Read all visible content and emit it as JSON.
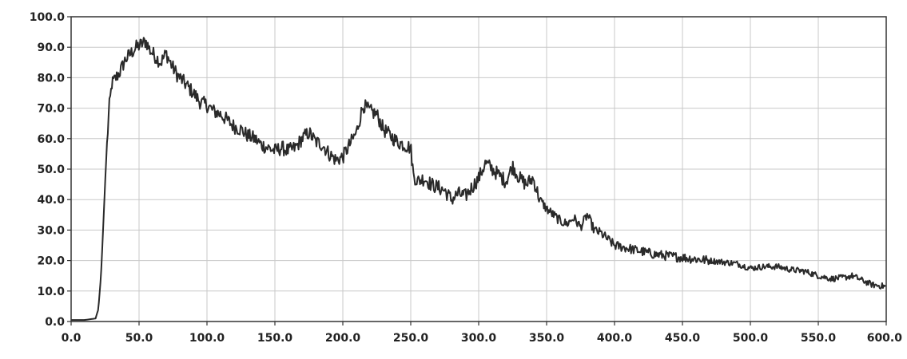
{
  "chart_data": {
    "type": "line",
    "title": "",
    "xlabel": "",
    "ylabel": "",
    "xlim": [
      0,
      600
    ],
    "ylim": [
      0,
      100
    ],
    "grid": true,
    "legend": "none",
    "x_ticks": [
      "0.0",
      "50.0",
      "100.0",
      "150.0",
      "200.0",
      "250.0",
      "300.0",
      "350.0",
      "400.0",
      "450.0",
      "500.0",
      "550.0",
      "600.0"
    ],
    "y_ticks": [
      "0.0",
      "10.0",
      "20.0",
      "30.0",
      "40.0",
      "50.0",
      "60.0",
      "70.0",
      "80.0",
      "90.0",
      "100.0"
    ],
    "colors": {
      "line": "#2a2a2a",
      "grid": "#c8c8c8",
      "axis": "#333333"
    },
    "series": [
      {
        "x": [
          0,
          10,
          18,
          20,
          22,
          24,
          26,
          28,
          30,
          33,
          36,
          40,
          44,
          48,
          52,
          55,
          58,
          62,
          66,
          70,
          74,
          78,
          82,
          86,
          90,
          95,
          100,
          105,
          110,
          115,
          120,
          125,
          130,
          135,
          140,
          145,
          150,
          155,
          160,
          165,
          170,
          175,
          180,
          185,
          190,
          195,
          200,
          205,
          210,
          215,
          220,
          225,
          230,
          235,
          240,
          245,
          250,
          252,
          255,
          260,
          265,
          270,
          275,
          280,
          285,
          290,
          295,
          300,
          305,
          310,
          315,
          320,
          325,
          330,
          335,
          340,
          345,
          350,
          355,
          360,
          365,
          370,
          375,
          380,
          385,
          390,
          395,
          400,
          410,
          420,
          430,
          440,
          450,
          460,
          470,
          480,
          490,
          500,
          510,
          520,
          530,
          540,
          550,
          560,
          570,
          575,
          580,
          590,
          600
        ],
        "y": [
          0.5,
          0.5,
          1,
          4,
          15,
          35,
          55,
          70,
          78,
          80,
          82,
          86,
          88,
          90,
          91,
          92,
          89,
          87,
          85,
          88,
          84,
          81,
          79,
          77,
          75,
          72,
          71,
          69,
          68,
          66,
          64,
          63,
          61,
          60,
          58,
          57,
          56,
          57,
          56,
          57,
          60,
          62,
          59,
          58,
          55,
          53,
          54,
          58,
          62,
          71,
          69,
          68,
          63,
          61,
          59,
          58,
          57,
          48,
          46,
          47,
          45,
          44,
          43,
          40,
          42,
          41,
          44,
          47,
          52,
          50,
          48,
          46,
          51,
          47,
          45,
          47,
          40,
          37,
          35,
          33,
          32,
          34,
          31,
          35,
          30,
          29,
          27,
          25,
          24,
          23,
          22,
          21.5,
          21,
          20.5,
          20,
          19.5,
          19,
          17.5,
          18,
          18,
          17,
          16.5,
          15,
          14,
          14.5,
          15,
          14,
          12,
          11.5
        ]
      }
    ]
  }
}
